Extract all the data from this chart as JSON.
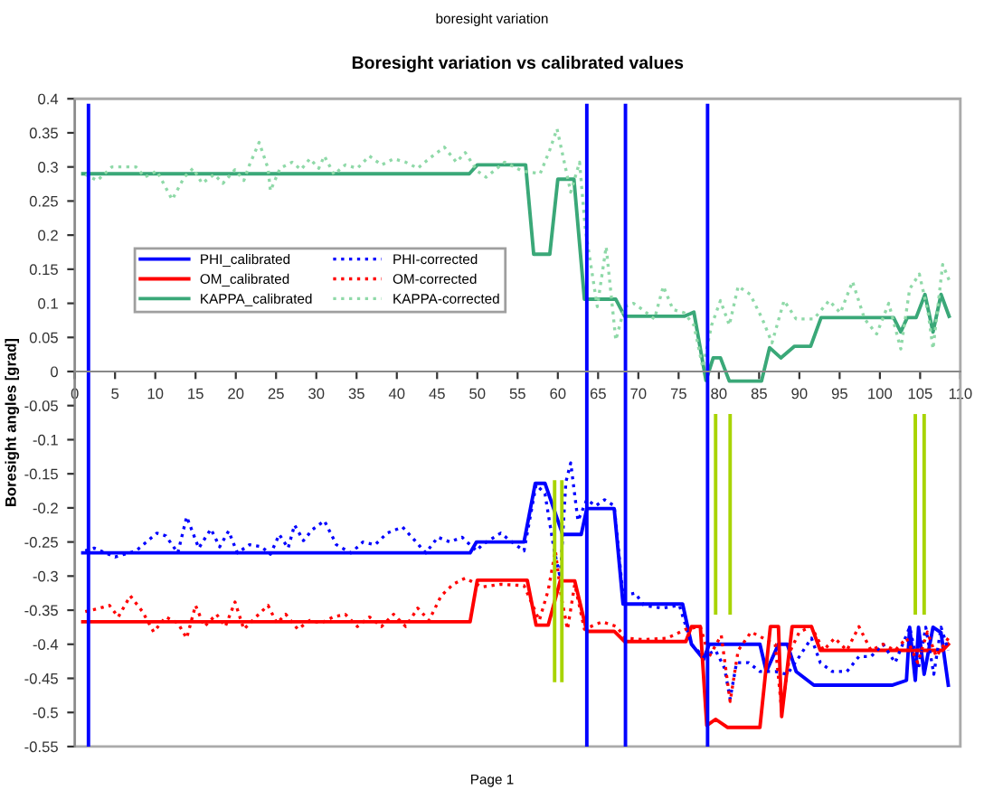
{
  "chart_data": {
    "type": "line",
    "title": "Boresight variation vs calibrated values",
    "ylabel": "Boresight angles [grad]",
    "annotations": [
      "boresight variation",
      "Page 1"
    ],
    "xlim": [
      0,
      110
    ],
    "ylim": [
      -0.55,
      0.4
    ],
    "xticks": [
      0,
      5,
      10,
      15,
      20,
      25,
      30,
      35,
      40,
      45,
      50,
      55,
      60,
      65,
      70,
      75,
      80,
      85,
      90,
      95,
      100,
      105,
      110
    ],
    "yticks": [
      -0.55,
      -0.5,
      -0.45,
      -0.4,
      -0.35,
      -0.3,
      -0.25,
      -0.2,
      -0.15,
      -0.1,
      -0.05,
      0,
      0.05,
      0.1,
      0.15,
      0.2,
      0.25,
      0.3,
      0.35,
      0.4
    ],
    "grid": false,
    "legend": "center left",
    "marker": "none",
    "series": [
      {
        "name": "PHI_calibrated",
        "color": "#0000ff",
        "line_style": "solid",
        "x": [
          1,
          49.1,
          49.9,
          55.8,
          57.2,
          58.4,
          60.6,
          62.9,
          63.6,
          67,
          68.1,
          75.5,
          76.6,
          78.1,
          78.8,
          85.1,
          85.9,
          87.4,
          88.5,
          89.6,
          91.8,
          101.5,
          103.3,
          103.7,
          104.4,
          104.8,
          105.5,
          106.6,
          107.6,
          108.5
        ],
        "values": [
          -0.266,
          -0.266,
          -0.25,
          -0.25,
          -0.164,
          -0.164,
          -0.239,
          -0.239,
          -0.201,
          -0.201,
          -0.341,
          -0.341,
          -0.4,
          -0.422,
          -0.4,
          -0.4,
          -0.44,
          -0.4,
          -0.4,
          -0.44,
          -0.46,
          -0.46,
          -0.453,
          -0.375,
          -0.453,
          -0.375,
          -0.444,
          -0.375,
          -0.383,
          -0.46
        ]
      },
      {
        "name": "OM_calibrated",
        "color": "#ff0000",
        "line_style": "solid",
        "x": [
          1,
          49.1,
          50,
          56.2,
          57.3,
          58.8,
          60.3,
          62.1,
          63.6,
          67,
          68.3,
          75.9,
          76.6,
          77.7,
          78.5,
          79.6,
          81.1,
          85.1,
          86.4,
          87.4,
          87.8,
          89.1,
          91.5,
          92.6,
          107.8,
          108.5
        ],
        "values": [
          -0.367,
          -0.367,
          -0.306,
          -0.306,
          -0.372,
          -0.372,
          -0.307,
          -0.307,
          -0.381,
          -0.381,
          -0.396,
          -0.396,
          -0.374,
          -0.374,
          -0.519,
          -0.51,
          -0.522,
          -0.522,
          -0.374,
          -0.374,
          -0.506,
          -0.374,
          -0.374,
          -0.409,
          -0.409,
          -0.4
        ]
      },
      {
        "name": "KAPPA_calibrated",
        "color": "#3aa878",
        "line_style": "solid",
        "x": [
          1,
          49,
          50,
          56,
          57,
          59,
          60,
          62,
          63.3,
          67.2,
          68.3,
          75.7,
          76.9,
          78.4,
          79.3,
          80.2,
          81.3,
          85.3,
          86.3,
          87.7,
          89.4,
          91.4,
          92.7,
          101.7,
          102.6,
          103.4,
          104.5,
          105.6,
          106.6,
          107.6,
          108.6
        ],
        "values": [
          0.29,
          0.29,
          0.303,
          0.303,
          0.172,
          0.172,
          0.282,
          0.282,
          0.106,
          0.106,
          0.081,
          0.081,
          0.087,
          -0.013,
          0.02,
          0.02,
          -0.014,
          -0.014,
          0.035,
          0.02,
          0.037,
          0.037,
          0.079,
          0.079,
          0.058,
          0.079,
          0.079,
          0.113,
          0.058,
          0.113,
          0.081
        ]
      },
      {
        "name": "PHI-corrected",
        "color": "#0000ff",
        "line_style": "dotted",
        "x": [
          1.3,
          2.4,
          5,
          7.6,
          10.2,
          11.3,
          12.8,
          13.9,
          15.4,
          16.9,
          18,
          19.1,
          20.2,
          21.7,
          23.2,
          24.3,
          25.4,
          26.5,
          27.3,
          28.4,
          29.5,
          31,
          32.5,
          34.3,
          35.8,
          37.3,
          38.8,
          40.7,
          42.1,
          43.6,
          45.1,
          46.6,
          48.1,
          49.9,
          50.6,
          52.9,
          54.3,
          55.8,
          57.3,
          58.4,
          59.5,
          60.3,
          61,
          61.6,
          62.5,
          63.6,
          64.7,
          65.8,
          67,
          68.1,
          69.6,
          70.7,
          72.9,
          75.1,
          76.6,
          78.1,
          79.6,
          80.7,
          81.4,
          82.2,
          83.7,
          85.1,
          87,
          88.5,
          90,
          91.5,
          92.6,
          94.1,
          95.9,
          97.4,
          98.9,
          100.4,
          101.9,
          103.7,
          104.8,
          105.7,
          106.7,
          107.6,
          108.5
        ],
        "values": [
          -0.263,
          -0.259,
          -0.272,
          -0.263,
          -0.237,
          -0.241,
          -0.266,
          -0.213,
          -0.259,
          -0.231,
          -0.257,
          -0.234,
          -0.266,
          -0.254,
          -0.257,
          -0.268,
          -0.239,
          -0.259,
          -0.225,
          -0.248,
          -0.232,
          -0.219,
          -0.254,
          -0.266,
          -0.25,
          -0.254,
          -0.237,
          -0.228,
          -0.246,
          -0.266,
          -0.243,
          -0.25,
          -0.243,
          -0.263,
          -0.254,
          -0.237,
          -0.25,
          -0.263,
          -0.166,
          -0.179,
          -0.259,
          -0.303,
          -0.162,
          -0.134,
          -0.219,
          -0.188,
          -0.197,
          -0.188,
          -0.197,
          -0.329,
          -0.325,
          -0.343,
          -0.347,
          -0.343,
          -0.4,
          -0.418,
          -0.409,
          -0.435,
          -0.48,
          -0.427,
          -0.427,
          -0.44,
          -0.44,
          -0.444,
          -0.418,
          -0.391,
          -0.427,
          -0.44,
          -0.44,
          -0.418,
          -0.418,
          -0.4,
          -0.427,
          -0.375,
          -0.435,
          -0.375,
          -0.444,
          -0.375,
          -0.409
        ]
      },
      {
        "name": "OM-corrected",
        "color": "#ff0000",
        "line_style": "dotted",
        "x": [
          1.3,
          3.1,
          4.3,
          5.4,
          6.9,
          8.4,
          9.8,
          11.3,
          12.8,
          13.9,
          15,
          16.1,
          17.6,
          18.7,
          19.9,
          21,
          22.5,
          24,
          25.1,
          26.2,
          27.7,
          29.2,
          30.6,
          32.1,
          33.6,
          35.1,
          36.6,
          38.1,
          39.6,
          41.1,
          42.6,
          44,
          45.5,
          47,
          48.5,
          50.6,
          52.9,
          55.8,
          57.7,
          58.8,
          59.7,
          60.4,
          61.2,
          62.1,
          63.3,
          65.5,
          67.3,
          68.4,
          70.7,
          73.6,
          75.9,
          77.7,
          78.8,
          80.3,
          81.4,
          82.4,
          84,
          85.5,
          87,
          87.8,
          88.9,
          90,
          91.5,
          93,
          94.4,
          95.9,
          97.4,
          98.9,
          100.4,
          101.9,
          103.3,
          104.7,
          105.9,
          107,
          108.5
        ],
        "values": [
          -0.352,
          -0.347,
          -0.343,
          -0.36,
          -0.329,
          -0.352,
          -0.382,
          -0.36,
          -0.369,
          -0.391,
          -0.343,
          -0.374,
          -0.356,
          -0.374,
          -0.338,
          -0.378,
          -0.36,
          -0.343,
          -0.369,
          -0.356,
          -0.378,
          -0.365,
          -0.369,
          -0.36,
          -0.356,
          -0.374,
          -0.36,
          -0.374,
          -0.356,
          -0.374,
          -0.347,
          -0.365,
          -0.329,
          -0.312,
          -0.303,
          -0.316,
          -0.312,
          -0.314,
          -0.365,
          -0.321,
          -0.263,
          -0.329,
          -0.378,
          -0.312,
          -0.378,
          -0.367,
          -0.374,
          -0.391,
          -0.393,
          -0.391,
          -0.378,
          -0.374,
          -0.418,
          -0.387,
          -0.484,
          -0.409,
          -0.382,
          -0.391,
          -0.4,
          -0.497,
          -0.409,
          -0.382,
          -0.374,
          -0.409,
          -0.391,
          -0.409,
          -0.374,
          -0.409,
          -0.4,
          -0.409,
          -0.391,
          -0.427,
          -0.382,
          -0.418,
          -0.391
        ]
      },
      {
        "name": "KAPPA-corrected",
        "color": "#8fd9a8",
        "line_style": "dotted",
        "x": [
          1.3,
          2.8,
          4.6,
          7.6,
          8.7,
          10.2,
          12.1,
          13.6,
          14.7,
          15.8,
          17.3,
          18.4,
          19.9,
          21,
          21.7,
          22.9,
          24,
          24.3,
          25.5,
          27,
          28.1,
          29.2,
          30.3,
          31,
          32.2,
          33.6,
          35.1,
          36.6,
          38.1,
          39.6,
          41.1,
          42.6,
          44,
          45.9,
          47.4,
          48.5,
          50,
          51.1,
          53.4,
          55.6,
          57.8,
          59,
          59.9,
          60.8,
          61.6,
          62.7,
          63.4,
          64.9,
          66,
          67.2,
          68.3,
          69.4,
          70.5,
          72,
          73.1,
          74.3,
          75.7,
          76.9,
          78,
          79.1,
          80.2,
          81.3,
          82.4,
          83.9,
          85.4,
          86.6,
          88.1,
          89.6,
          91.8,
          93.7,
          95.1,
          96.6,
          98.1,
          99.6,
          101.1,
          102.6,
          103.7,
          104.9,
          106,
          106.6,
          107.8,
          108.6
        ],
        "values": [
          0.289,
          0.28,
          0.3,
          0.3,
          0.285,
          0.294,
          0.252,
          0.285,
          0.298,
          0.276,
          0.289,
          0.276,
          0.296,
          0.28,
          0.303,
          0.336,
          0.298,
          0.265,
          0.298,
          0.307,
          0.296,
          0.312,
          0.298,
          0.316,
          0.289,
          0.303,
          0.298,
          0.316,
          0.303,
          0.312,
          0.307,
          0.298,
          0.312,
          0.329,
          0.307,
          0.321,
          0.294,
          0.285,
          0.307,
          0.294,
          0.29,
          0.325,
          0.356,
          0.307,
          0.263,
          0.307,
          0.21,
          0.095,
          0.183,
          0.046,
          0.095,
          0.1,
          0.091,
          0.077,
          0.125,
          0.091,
          0.086,
          0.068,
          0.006,
          0.068,
          0.104,
          0.068,
          0.125,
          0.113,
          0.077,
          0.042,
          0.104,
          0.077,
          0.077,
          0.104,
          0.086,
          0.132,
          0.077,
          0.055,
          0.1,
          0.033,
          0.121,
          0.143,
          0.086,
          0.033,
          0.157,
          0.134
        ]
      },
      {
        "color": "#0000ff",
        "line_style": "solid",
        "x": [
          1.7,
          1.7
        ],
        "values": [
          -0.55,
          0.39
        ]
      },
      {
        "color": "#0000ff",
        "line_style": "solid",
        "x": [
          63.6,
          63.6
        ],
        "values": [
          -0.55,
          0.39
        ]
      },
      {
        "color": "#0000ff",
        "line_style": "solid",
        "x": [
          68.4,
          68.4
        ],
        "values": [
          -0.55,
          0.39
        ]
      },
      {
        "color": "#0000ff",
        "line_style": "solid",
        "x": [
          78.6,
          78.6
        ],
        "values": [
          -0.55,
          0.39
        ]
      },
      {
        "color": "#a8d400",
        "line_style": "solid",
        "x": [
          59.6,
          59.6
        ],
        "values": [
          -0.453,
          -0.162
        ]
      },
      {
        "color": "#a8d400",
        "line_style": "solid",
        "x": [
          60.5,
          60.5
        ],
        "values": [
          -0.453,
          -0.162
        ]
      },
      {
        "color": "#a8d400",
        "line_style": "solid",
        "x": [
          79.6,
          79.6
        ],
        "values": [
          -0.354,
          -0.065
        ]
      },
      {
        "color": "#a8d400",
        "line_style": "solid",
        "x": [
          81.4,
          81.4
        ],
        "values": [
          -0.354,
          -0.065
        ]
      },
      {
        "color": "#a8d400",
        "line_style": "solid",
        "x": [
          104.4,
          104.4
        ],
        "values": [
          -0.354,
          -0.065
        ]
      },
      {
        "color": "#a8d400",
        "line_style": "solid",
        "x": [
          105.5,
          105.5
        ],
        "values": [
          -0.354,
          -0.065
        ]
      }
    ]
  }
}
